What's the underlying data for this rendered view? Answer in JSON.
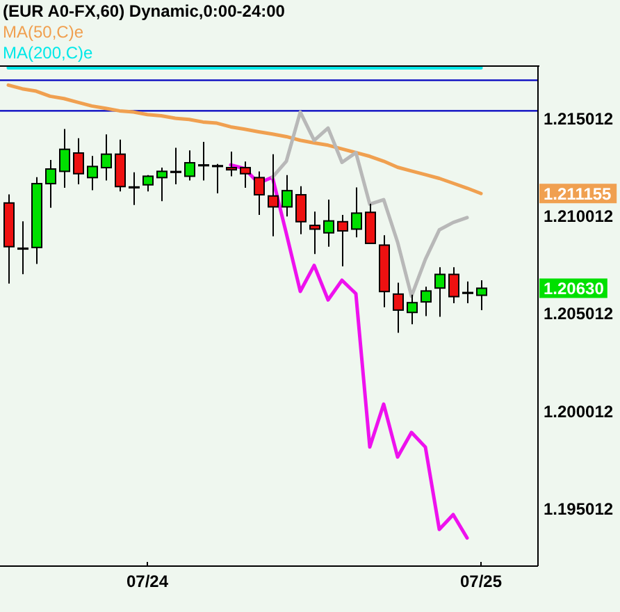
{
  "chart_data": {
    "type": "candlestick",
    "title": "(EUR A0-FX,60) Dynamic,0:00-24:00",
    "categories": [
      null,
      null,
      null,
      null,
      null,
      null,
      null,
      null,
      null,
      null,
      "07/24",
      null,
      null,
      null,
      null,
      null,
      null,
      null,
      null,
      null,
      null,
      null,
      null,
      null,
      null,
      null,
      null,
      null,
      null,
      null,
      null,
      null,
      null,
      null,
      "07/25"
    ],
    "ohlc": [
      [
        1.21067,
        1.21111,
        1.20654,
        1.20843
      ],
      [
        1.20833,
        1.20973,
        1.20702,
        1.20833
      ],
      [
        1.20839,
        1.21199,
        1.20755,
        1.21166
      ],
      [
        1.21166,
        1.21287,
        1.21042,
        1.21241
      ],
      [
        1.21229,
        1.21446,
        1.21145,
        1.21342
      ],
      [
        1.21323,
        1.21399,
        1.21163,
        1.21217
      ],
      [
        1.21197,
        1.21308,
        1.21132,
        1.21254
      ],
      [
        1.21248,
        1.21418,
        1.21182,
        1.21317
      ],
      [
        1.21317,
        1.21392,
        1.21126,
        1.21151
      ],
      [
        1.21147,
        1.21224,
        1.21057,
        1.21147
      ],
      [
        1.2116,
        1.2121,
        1.21126,
        1.21204
      ],
      [
        1.21197,
        1.21248,
        1.21076,
        1.21229
      ],
      [
        1.21226,
        1.2135,
        1.21163,
        1.21226
      ],
      [
        1.21204,
        1.21336,
        1.21182,
        1.21273
      ],
      [
        1.2126,
        1.2138,
        1.21182,
        1.2126
      ],
      [
        1.21256,
        1.21267,
        1.21116,
        1.21256
      ],
      [
        1.21248,
        1.2133,
        1.21204,
        1.21237
      ],
      [
        1.21248,
        1.21279,
        1.21145,
        1.21217
      ],
      [
        1.21197,
        1.21229,
        1.21006,
        1.21109
      ],
      [
        1.21103,
        1.21317,
        1.20896,
        1.21047
      ],
      [
        1.21047,
        1.2121,
        1.20998,
        1.2113
      ],
      [
        1.21109,
        1.21153,
        1.20907,
        1.20971
      ],
      [
        1.20952,
        1.21023,
        1.20805,
        1.20933
      ],
      [
        1.20914,
        1.21084,
        1.20843,
        1.20975
      ],
      [
        1.20971,
        1.21006,
        1.20742,
        1.20924
      ],
      [
        1.20933,
        1.21147,
        1.20891,
        1.21015
      ],
      [
        1.21019,
        1.21063,
        1.2086,
        1.2086
      ],
      [
        1.20851,
        1.20902,
        1.20533,
        1.20613
      ],
      [
        1.206,
        1.20658,
        1.20402,
        1.20518
      ],
      [
        1.20506,
        1.20597,
        1.20445,
        1.20556
      ],
      [
        1.2056,
        1.20638,
        1.20487,
        1.20616
      ],
      [
        1.20631,
        1.20738,
        1.20484,
        1.20701
      ],
      [
        1.20701,
        1.20738,
        1.20553,
        1.20587
      ],
      [
        1.20606,
        1.20665,
        1.20553,
        1.20606
      ],
      [
        1.20594,
        1.20671,
        1.20518,
        1.2063
      ]
    ],
    "colors": [
      "#ee1111",
      "#000000",
      "#00e000",
      "#00e000",
      "#00e000",
      "#ee1111",
      "#00e000",
      "#00e000",
      "#ee1111",
      "#000000",
      "#00e000",
      "#00e000",
      "#000000",
      "#00e000",
      "#000000",
      "#000000",
      "#ee1111",
      "#ee1111",
      "#ee1111",
      "#ee1111",
      "#00e000",
      "#ee1111",
      "#ee1111",
      "#00e000",
      "#ee1111",
      "#00e000",
      "#ee1111",
      "#ee1111",
      "#ee1111",
      "#00e000",
      "#00e000",
      "#00e000",
      "#ee1111",
      "#000000",
      "#00e000"
    ],
    "series": [
      {
        "name": "MA(50,C)e",
        "type": "line",
        "color": "#f0a050",
        "values": [
          1.21671,
          1.21652,
          1.2164,
          1.21614,
          1.21602,
          1.21583,
          1.21564,
          1.21552,
          1.21539,
          1.21533,
          1.2152,
          1.21514,
          1.21501,
          1.21495,
          1.21482,
          1.21476,
          1.21457,
          1.21445,
          1.21432,
          1.2142,
          1.21407,
          1.21388,
          1.21375,
          1.21363,
          1.21344,
          1.21325,
          1.21306,
          1.21281,
          1.2125,
          1.21231,
          1.21212,
          1.21193,
          1.21168,
          1.21143,
          1.211155
        ]
      },
      {
        "name": "MA(200,C)e",
        "type": "line",
        "color": "#00e8e8",
        "values": [
          1.2176,
          1.2176,
          1.2176,
          1.2176,
          1.2176,
          1.2176,
          1.2176,
          1.2176,
          1.2176,
          1.2176,
          1.2176,
          1.2176,
          1.2176,
          1.2176,
          1.2176,
          1.2176,
          1.2176,
          1.2176,
          1.2176,
          1.2176,
          1.2176,
          1.2176,
          1.2176,
          1.2176,
          1.2176,
          1.2176,
          1.2176,
          1.2176,
          1.2176,
          1.2176,
          1.2176,
          1.2176,
          1.2176,
          1.2176,
          1.2176
        ]
      },
      {
        "type": "line",
        "color": "#ee11ee",
        "values": [
          null,
          null,
          null,
          null,
          null,
          null,
          null,
          null,
          null,
          null,
          null,
          null,
          null,
          null,
          null,
          null,
          1.21262,
          1.21243,
          1.21168,
          1.21199,
          1.2091,
          1.20614,
          1.20747,
          1.2057,
          1.20671,
          1.20602,
          1.19816,
          1.20036,
          1.19765,
          1.19891,
          1.19816,
          1.19394,
          1.1947,
          1.1935,
          null
        ]
      },
      {
        "type": "line",
        "color": "#b8b8b8",
        "values": [
          null,
          null,
          null,
          null,
          null,
          null,
          null,
          null,
          null,
          null,
          null,
          null,
          null,
          null,
          null,
          null,
          null,
          null,
          null,
          1.21199,
          1.21281,
          1.21533,
          1.21388,
          1.21451,
          1.21275,
          1.21325,
          1.21061,
          1.21084,
          1.20866,
          1.20589,
          1.20778,
          1.20929,
          1.20967,
          1.20992,
          null
        ]
      }
    ],
    "ylim": [
      1.19206,
      1.21765
    ],
    "yticks": [
      1.195012,
      1.200012,
      1.205012,
      {
        "value": 1.2063,
        "label": "1.20630"
      },
      1.210012,
      1.211155,
      1.215012
    ],
    "ref_lines": [
      {
        "axis": "y",
        "value": 1.21696,
        "color": "#0000c0"
      },
      {
        "axis": "y",
        "value": 1.21539,
        "color": "#0000c0"
      }
    ],
    "legend": "top left"
  }
}
